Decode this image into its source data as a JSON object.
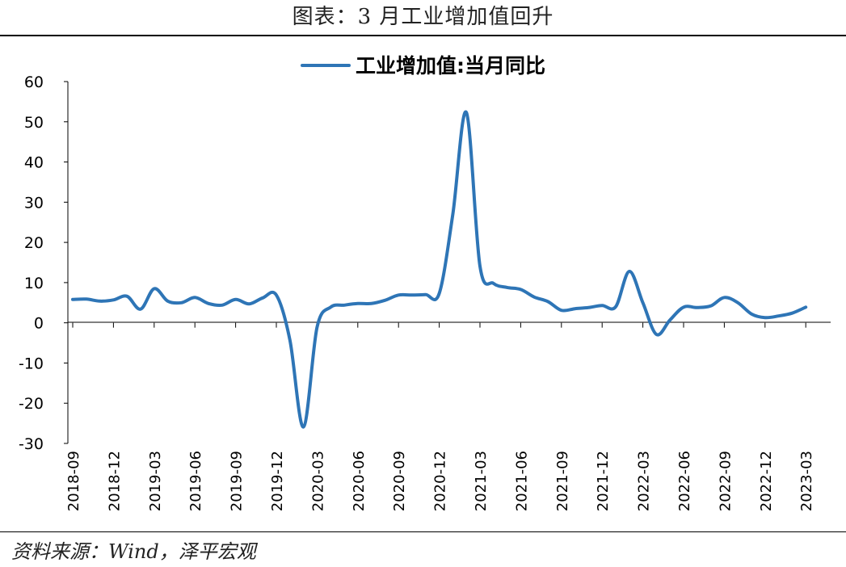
{
  "header": {
    "title": "图表：3 月工业增加值回升"
  },
  "footer": {
    "source": "资料来源：Wind，泽平宏观"
  },
  "chart_data": {
    "type": "line",
    "title": "",
    "xlabel": "",
    "ylabel": "",
    "ylim": [
      -30,
      60
    ],
    "yticks": [
      60,
      50,
      40,
      30,
      20,
      10,
      0,
      -10,
      -20,
      -30
    ],
    "grid": false,
    "legend_position": "top-center",
    "tick_labels": [
      "2018-09",
      "2018-12",
      "2019-03",
      "2019-06",
      "2019-09",
      "2019-12",
      "2020-03",
      "2020-06",
      "2020-09",
      "2020-12",
      "2021-03",
      "2021-06",
      "2021-09",
      "2021-12",
      "2022-03",
      "2022-06",
      "2022-09",
      "2022-12",
      "2023-03"
    ],
    "x": [
      "2018-09",
      "2018-10",
      "2018-11",
      "2018-12",
      "2019-01",
      "2019-02",
      "2019-03",
      "2019-04",
      "2019-05",
      "2019-06",
      "2019-07",
      "2019-08",
      "2019-09",
      "2019-10",
      "2019-11",
      "2019-12",
      "2020-01",
      "2020-02",
      "2020-03",
      "2020-04",
      "2020-05",
      "2020-06",
      "2020-07",
      "2020-08",
      "2020-09",
      "2020-10",
      "2020-11",
      "2020-12",
      "2021-01",
      "2021-02",
      "2021-03",
      "2021-04",
      "2021-05",
      "2021-06",
      "2021-07",
      "2021-08",
      "2021-09",
      "2021-10",
      "2021-11",
      "2021-12",
      "2022-01",
      "2022-02",
      "2022-03",
      "2022-04",
      "2022-05",
      "2022-06",
      "2022-07",
      "2022-08",
      "2022-09",
      "2022-10",
      "2022-11",
      "2022-12",
      "2023-01",
      "2023-02",
      "2023-03"
    ],
    "series": [
      {
        "name": "工业增加值:当月同比",
        "color": "#2e75b6",
        "values": [
          5.8,
          5.9,
          5.4,
          5.7,
          6.6,
          3.4,
          8.5,
          5.4,
          5.0,
          6.3,
          4.8,
          4.4,
          5.8,
          4.7,
          6.2,
          6.9,
          -4.3,
          -25.9,
          -1.1,
          3.9,
          4.4,
          4.8,
          4.8,
          5.6,
          6.9,
          6.9,
          7.0,
          7.3,
          27.0,
          52.3,
          14.1,
          9.8,
          8.8,
          8.3,
          6.4,
          5.3,
          3.1,
          3.5,
          3.8,
          4.3,
          4.0,
          12.8,
          5.0,
          -2.9,
          0.7,
          3.9,
          3.8,
          4.2,
          6.3,
          5.0,
          2.2,
          1.3,
          1.7,
          2.4,
          3.9
        ]
      }
    ]
  }
}
